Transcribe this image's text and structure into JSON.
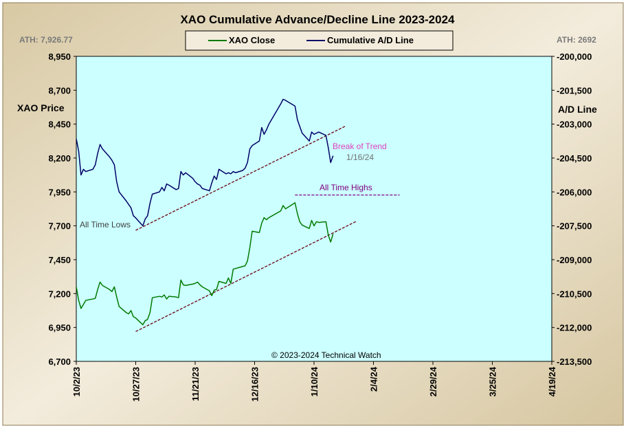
{
  "chart_data": {
    "type": "line",
    "title": "XAO Cumulative Advance/Decline Line 2023-2024",
    "legend": {
      "position": "top-center",
      "entries": [
        "XAO Close",
        "Cumulative A/D Line"
      ]
    },
    "ath_left": "ATH: 7,926.77",
    "ath_right": "ATH: 2692",
    "ylabel_left": "XAO Price",
    "ylabel_right": "A/D Line",
    "ylim_left": [
      6700,
      8950
    ],
    "ylim_right": [
      -213500,
      -200000
    ],
    "yticks_left": [
      "6,700",
      "6,950",
      "7,200",
      "7,450",
      "7,700",
      "7,950",
      "8,200",
      "8,450",
      "8,700",
      "8,950"
    ],
    "yticks_right": [
      "-213,500",
      "-212,000",
      "-210,500",
      "-209,000",
      "-207,500",
      "-206,000",
      "-204,500",
      "-203,000",
      "-201,500",
      "-200,000"
    ],
    "x_dates": [
      "10/2/23",
      "10/27/23",
      "11/21/23",
      "12/16/23",
      "1/10/24",
      "2/4/24",
      "2/29/24",
      "3/25/24",
      "4/19/24"
    ],
    "xlim": [
      "2023-10-02",
      "2024-04-19"
    ],
    "grid": false,
    "colors": {
      "xao_close": "#007a00",
      "ad_line": "#000066",
      "plot_bg": "#ccffff",
      "frame_bg": "#e8dcc0",
      "trend": "#6b0010",
      "ath_line": "#800080",
      "break_text": "#e040c0"
    },
    "series": [
      {
        "name": "XAO Close",
        "axis": "left",
        "points": [
          [
            "2023-10-02",
            7250
          ],
          [
            "2023-10-03",
            7150
          ],
          [
            "2023-10-04",
            7090
          ],
          [
            "2023-10-05",
            7120
          ],
          [
            "2023-10-06",
            7150
          ],
          [
            "2023-10-09",
            7160
          ],
          [
            "2023-10-10",
            7165
          ],
          [
            "2023-10-11",
            7230
          ],
          [
            "2023-10-12",
            7285
          ],
          [
            "2023-10-13",
            7260
          ],
          [
            "2023-10-16",
            7230
          ],
          [
            "2023-10-17",
            7215
          ],
          [
            "2023-10-18",
            7250
          ],
          [
            "2023-10-19",
            7175
          ],
          [
            "2023-10-20",
            7105
          ],
          [
            "2023-10-23",
            7060
          ],
          [
            "2023-10-24",
            7050
          ],
          [
            "2023-10-25",
            7075
          ],
          [
            "2023-10-26",
            7030
          ],
          [
            "2023-10-27",
            7020
          ],
          [
            "2023-10-30",
            6970
          ],
          [
            "2023-10-31",
            7000
          ],
          [
            "2023-11-01",
            7010
          ],
          [
            "2023-11-02",
            7060
          ],
          [
            "2023-11-03",
            7170
          ],
          [
            "2023-11-06",
            7180
          ],
          [
            "2023-11-07",
            7175
          ],
          [
            "2023-11-08",
            7190
          ],
          [
            "2023-11-09",
            7160
          ],
          [
            "2023-11-10",
            7180
          ],
          [
            "2023-11-13",
            7175
          ],
          [
            "2023-11-14",
            7170
          ],
          [
            "2023-11-15",
            7300
          ],
          [
            "2023-11-16",
            7265
          ],
          [
            "2023-11-17",
            7260
          ],
          [
            "2023-11-20",
            7270
          ],
          [
            "2023-11-21",
            7275
          ],
          [
            "2023-11-22",
            7285
          ],
          [
            "2023-11-23",
            7265
          ],
          [
            "2023-11-24",
            7250
          ],
          [
            "2023-11-27",
            7220
          ],
          [
            "2023-11-28",
            7185
          ],
          [
            "2023-11-29",
            7225
          ],
          [
            "2023-11-30",
            7230
          ],
          [
            "2023-12-01",
            7290
          ],
          [
            "2023-12-04",
            7275
          ],
          [
            "2023-12-05",
            7315
          ],
          [
            "2023-12-06",
            7275
          ],
          [
            "2023-12-07",
            7380
          ],
          [
            "2023-12-08",
            7385
          ],
          [
            "2023-12-11",
            7400
          ],
          [
            "2023-12-12",
            7405
          ],
          [
            "2023-12-13",
            7440
          ],
          [
            "2023-12-14",
            7540
          ],
          [
            "2023-12-15",
            7660
          ],
          [
            "2023-12-18",
            7650
          ],
          [
            "2023-12-19",
            7720
          ],
          [
            "2023-12-20",
            7760
          ],
          [
            "2023-12-21",
            7745
          ],
          [
            "2023-12-22",
            7760
          ],
          [
            "2023-12-27",
            7810
          ],
          [
            "2023-12-28",
            7850
          ],
          [
            "2023-12-29",
            7825
          ],
          [
            "2024-01-02",
            7870
          ],
          [
            "2024-01-03",
            7790
          ],
          [
            "2024-01-04",
            7730
          ],
          [
            "2024-01-05",
            7705
          ],
          [
            "2024-01-08",
            7680
          ],
          [
            "2024-01-09",
            7740
          ],
          [
            "2024-01-10",
            7700
          ],
          [
            "2024-01-11",
            7730
          ],
          [
            "2024-01-12",
            7725
          ],
          [
            "2024-01-15",
            7730
          ],
          [
            "2024-01-16",
            7630
          ],
          [
            "2024-01-17",
            7580
          ],
          [
            "2024-01-18",
            7640
          ]
        ]
      },
      {
        "name": "Cumulative A/D Line",
        "axis": "right",
        "points": [
          [
            "2023-10-02",
            -203650
          ],
          [
            "2023-10-03",
            -204200
          ],
          [
            "2023-10-04",
            -205250
          ],
          [
            "2023-10-05",
            -205000
          ],
          [
            "2023-10-06",
            -205100
          ],
          [
            "2023-10-09",
            -205000
          ],
          [
            "2023-10-10",
            -204800
          ],
          [
            "2023-10-11",
            -204300
          ],
          [
            "2023-10-12",
            -203900
          ],
          [
            "2023-10-13",
            -204100
          ],
          [
            "2023-10-16",
            -204450
          ],
          [
            "2023-10-17",
            -204600
          ],
          [
            "2023-10-18",
            -204800
          ],
          [
            "2023-10-19",
            -205550
          ],
          [
            "2023-10-20",
            -206000
          ],
          [
            "2023-10-23",
            -206400
          ],
          [
            "2023-10-24",
            -206550
          ],
          [
            "2023-10-25",
            -206700
          ],
          [
            "2023-10-26",
            -207050
          ],
          [
            "2023-10-27",
            -207150
          ],
          [
            "2023-10-30",
            -207500
          ],
          [
            "2023-10-31",
            -207200
          ],
          [
            "2023-11-01",
            -207050
          ],
          [
            "2023-11-02",
            -206500
          ],
          [
            "2023-11-03",
            -206100
          ],
          [
            "2023-11-06",
            -206000
          ],
          [
            "2023-11-07",
            -205800
          ],
          [
            "2023-11-08",
            -205950
          ],
          [
            "2023-11-09",
            -205650
          ],
          [
            "2023-11-10",
            -205700
          ],
          [
            "2023-11-13",
            -205900
          ],
          [
            "2023-11-14",
            -205850
          ],
          [
            "2023-11-15",
            -205100
          ],
          [
            "2023-11-16",
            -205250
          ],
          [
            "2023-11-17",
            -205150
          ],
          [
            "2023-11-20",
            -205400
          ],
          [
            "2023-11-21",
            -205550
          ],
          [
            "2023-11-22",
            -205650
          ],
          [
            "2023-11-23",
            -205700
          ],
          [
            "2023-11-24",
            -205850
          ],
          [
            "2023-11-27",
            -205950
          ],
          [
            "2023-11-28",
            -205600
          ],
          [
            "2023-11-29",
            -205300
          ],
          [
            "2023-11-30",
            -205450
          ],
          [
            "2023-12-01",
            -205000
          ],
          [
            "2023-12-04",
            -205200
          ],
          [
            "2023-12-05",
            -205150
          ],
          [
            "2023-12-06",
            -205200
          ],
          [
            "2023-12-07",
            -205100
          ],
          [
            "2023-12-08",
            -205150
          ],
          [
            "2023-12-11",
            -205050
          ],
          [
            "2023-12-12",
            -204950
          ],
          [
            "2023-12-13",
            -204700
          ],
          [
            "2023-12-14",
            -204100
          ],
          [
            "2023-12-15",
            -203950
          ],
          [
            "2023-12-18",
            -203750
          ],
          [
            "2023-12-19",
            -203150
          ],
          [
            "2023-12-20",
            -203450
          ],
          [
            "2023-12-21",
            -203250
          ],
          [
            "2023-12-22",
            -203000
          ],
          [
            "2023-12-27",
            -202100
          ],
          [
            "2023-12-28",
            -201900
          ],
          [
            "2023-12-29",
            -201950
          ],
          [
            "2024-01-02",
            -202200
          ],
          [
            "2024-01-03",
            -202800
          ],
          [
            "2024-01-04",
            -203100
          ],
          [
            "2024-01-05",
            -203400
          ],
          [
            "2024-01-08",
            -203750
          ],
          [
            "2024-01-09",
            -203350
          ],
          [
            "2024-01-10",
            -203450
          ],
          [
            "2024-01-11",
            -203400
          ],
          [
            "2024-01-12",
            -203350
          ],
          [
            "2024-01-15",
            -203500
          ],
          [
            "2024-01-16",
            -204050
          ],
          [
            "2024-01-17",
            -204700
          ],
          [
            "2024-01-18",
            -204400
          ]
        ]
      }
    ],
    "annotations": {
      "all_time_lows": "All Time Lows",
      "break_of_trend": "Break of Trend",
      "break_date": "1/16/24",
      "all_time_highs": "All Time Highs",
      "copyright": "© 2023-2024  Technical Watch"
    },
    "trend_lines": [
      {
        "axis": "right",
        "from": [
          "2023-10-27",
          -207700
        ],
        "to": [
          "2024-01-23",
          -203100
        ]
      },
      {
        "axis": "left",
        "from": [
          "2023-10-27",
          6920
        ],
        "to": [
          "2024-01-28",
          7735
        ]
      }
    ],
    "ath_line": {
      "axis": "left",
      "from": "2024-01-02",
      "to": "2024-02-15",
      "value": 7927
    }
  }
}
